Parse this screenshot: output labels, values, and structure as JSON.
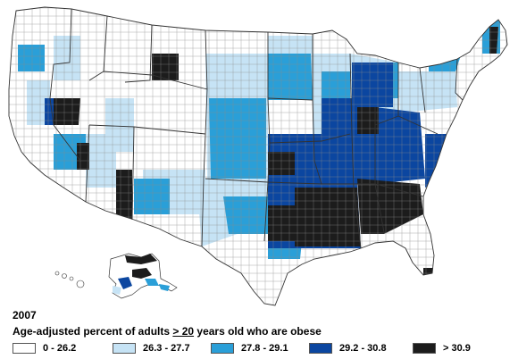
{
  "map": {
    "year": "2007",
    "title_prefix": "Age-adjusted percent of adults ",
    "title_threshold": "> 20",
    "title_suffix": " years old who are obese",
    "legend": [
      {
        "label": "0 - 26.2",
        "color": "#ffffff"
      },
      {
        "label": "26.3 - 27.7",
        "color": "#c6e3f5"
      },
      {
        "label": "27.8 - 29.1",
        "color": "#2a9fd8"
      },
      {
        "label": "29.2 - 30.8",
        "color": "#0b46a0"
      },
      {
        "label": "> 30.9",
        "color": "#1c1c1c"
      }
    ],
    "colors": {
      "background": "#ffffff",
      "county_border": "#7a7a7a",
      "state_border": "#333333"
    }
  }
}
